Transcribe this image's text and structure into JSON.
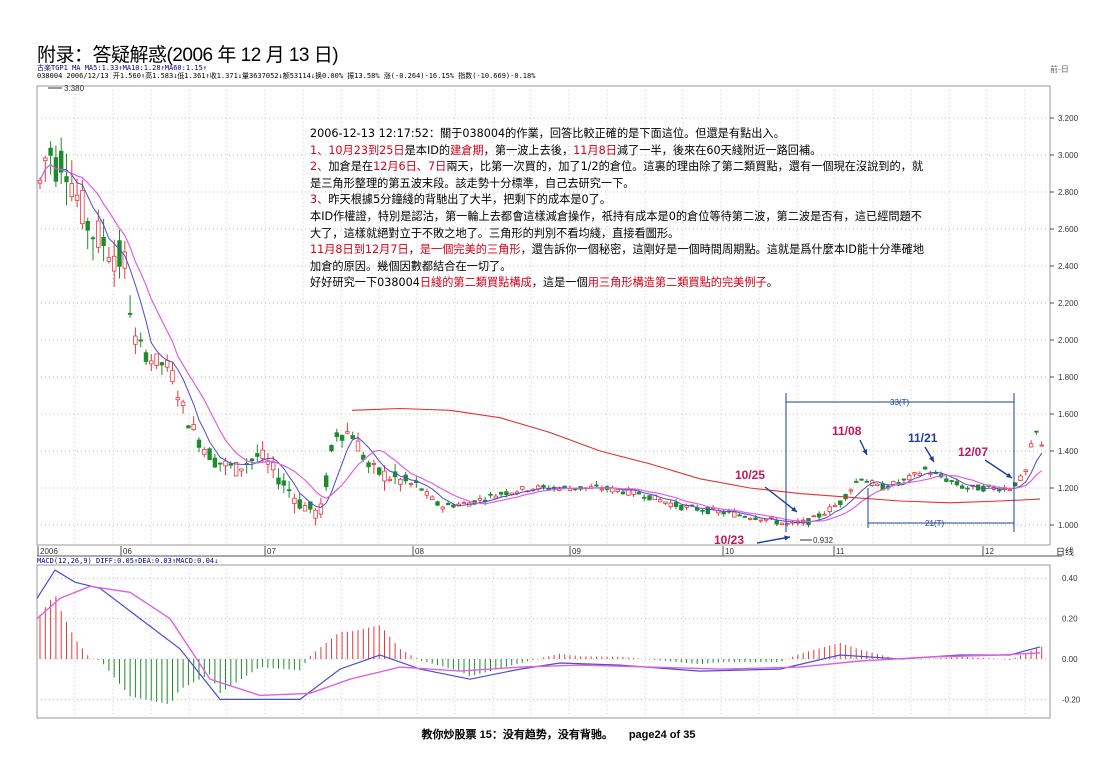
{
  "heading": "附录：答疑解惑(2006 年 12 月 13 日)",
  "header_line1": "古楽TGP1 MA MA5:1.33↑MA10:1.28↑MA60:1.15↑",
  "header_line2": "038004 2006/12/13 开1.560↑高1.583↓低1.361↑收1.371↓量3637052↓额53114↓换0.00% 振13.58% 涨(-0.264)-16.15% 指数(-10.669)-0.18%",
  "top_right": "前-日",
  "max_label": "3.380",
  "min_label": "0.932",
  "note": {
    "l1": "2006-12-13 12:17:52：關于038004的作業，回答比較正確的是下面這位。但還是有點出入。",
    "l2a": "1、",
    "l2b": "10月23到25日",
    "l2c": "是本ID的",
    "l2d": "建倉期",
    "l2e": "，第一波上去後，",
    "l2f": "11月8日",
    "l2g": "減了一半，後來在60天綫附近一路回補。",
    "l3a": "2、",
    "l3b": "加倉是在",
    "l3c": "12月6日、7日",
    "l3d": "兩天，比第一次買的，加了1/2的倉位。這裏的理由除了第二類買點，還有一個現在沒說到的，就",
    "l4": "是三角形整理的第五波末段。該走勢十分標準，自己去研究一下。",
    "l5a": "3、",
    "l5b": "昨天根據5分鐘綫的背馳出了大半，把剩下的成本是0了。",
    "l6": "本ID作權證，特別是認沽，第一輪上去都會這樣減倉操作，祇持有成本是0的倉位等待第二波，第二波是否有，這已經問題不",
    "l7": "大了，這樣就絕對立于不敗之地了。三角形的判別不看均綫，直接看圖形。",
    "l8a": "11月8日到12月7日",
    "l8b": "，",
    "l8c": "是一個完美的三角形",
    "l8d": "，還告訴你一個秘密，這剛好是一個時間周期點。這就是爲什麼本ID能十分準確地",
    "l9": "加倉的原因。幾個因數都結合在一切了。",
    "l10a": "好好研究一下038004",
    "l10b": "日綫的第二類買點構成",
    "l10c": "，這是一個",
    "l10d": "用三角形構造第二類買點的完美例子",
    "l10e": "。"
  },
  "annotations": {
    "d1025": "10/25",
    "d1108": "11/08",
    "d1121": "11/21",
    "d1207": "12/07",
    "d1023": "10/23",
    "span33": "33(T)",
    "span21": "21(T)"
  },
  "x_axis": {
    "labels": [
      "2006",
      "06",
      "07",
      "08",
      "09",
      "10",
      "11",
      "12"
    ],
    "right_label": "日线"
  },
  "price_axis": [
    "3.200",
    "3.000",
    "2.800",
    "2.600",
    "2.400",
    "2.200",
    "2.000",
    "1.800",
    "1.600",
    "1.400",
    "1.200",
    "1.000"
  ],
  "macd_header": "MACD(12,26,9) DIFF:0.05↑DEA:0.03↑MACD:0.04↓",
  "macd_axis": [
    "0.40",
    "0.20",
    "0.00",
    "-0.20"
  ],
  "footer": {
    "title": "教你炒股票 15：没有趋势，没有背驰。",
    "page": "page24 of 35"
  },
  "colors": {
    "up": "#e8383d",
    "down": "#1f8a2e",
    "ma5": "#4b4bd6",
    "ma10": "#e060e0",
    "ma60": "#e83030",
    "annotation": "#c2185b",
    "arrow": "#1a3fa0"
  }
}
